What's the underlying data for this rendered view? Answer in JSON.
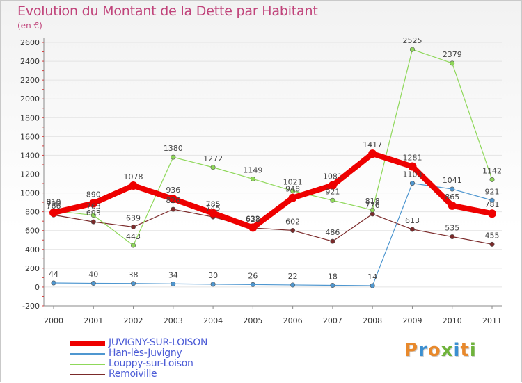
{
  "title": "Evolution du Montant de la Dette par Habitant",
  "unit": "(en €)",
  "logo": {
    "text": "Proxiti",
    "letter_colors": [
      "#e8892c",
      "#3a8fd1",
      "#e8892c",
      "#6fb33b",
      "#3a8fd1",
      "#e8892c",
      "#6fb33b"
    ]
  },
  "colors": {
    "text": "#4b5bd6",
    "axis": "#8a8a8a",
    "grid": "#e4e4e4",
    "title": "#c0437a"
  },
  "chart_data": {
    "type": "line",
    "title": "Evolution du Montant de la Dette par Habitant",
    "ylabel": "(en €)",
    "xlabel": "",
    "x": [
      "2000",
      "2001",
      "2002",
      "2003",
      "2004",
      "2005",
      "2006",
      "2007",
      "2008",
      "2009",
      "2010",
      "2011"
    ],
    "ylim": [
      -200,
      2600
    ],
    "yticks": [
      -200,
      0,
      200,
      400,
      600,
      800,
      1000,
      1200,
      1400,
      1600,
      1800,
      2000,
      2200,
      2400,
      2600
    ],
    "grid": true,
    "legend_position": "bottom-left",
    "series": [
      {
        "name": "Remoiville",
        "color": "#7b2a2a",
        "width": 1.2,
        "values": [
          766,
          693,
          639,
          826,
          745,
          628,
          602,
          486,
          776,
          613,
          535,
          455
        ],
        "labels": [
          "766",
          "693",
          "639",
          "826",
          "745",
          "628",
          "602",
          "486",
          "776",
          "613",
          "535",
          "455"
        ]
      },
      {
        "name": "Han-lès-Juvigny",
        "color": "#4f97d0",
        "width": 1.2,
        "values": [
          44,
          40,
          38,
          34,
          30,
          26,
          22,
          18,
          14,
          1103,
          1041,
          921
        ],
        "labels": [
          "44",
          "40",
          "38",
          "34",
          "30",
          "26",
          "22",
          "18",
          "14",
          "1103",
          "1041",
          "921"
        ]
      },
      {
        "name": "Louppy-sur-Loison",
        "color": "#8fd85a",
        "width": 1.2,
        "values": [
          810,
          763,
          443,
          1380,
          1272,
          1149,
          1021,
          921,
          818,
          2525,
          2379,
          1142
        ],
        "labels": [
          "810",
          "763",
          "443",
          "1380",
          "1272",
          "1149",
          "1021",
          "921",
          "818",
          "2525",
          "2379",
          "1142"
        ]
      },
      {
        "name": "JUVIGNY-SUR-LOISON",
        "color": "#ee0000",
        "width": 8,
        "values": [
          790,
          890,
          1078,
          936,
          785,
          632,
          948,
          1081,
          1417,
          1281,
          865,
          781
        ],
        "labels": [
          "790",
          "890",
          "1078",
          "936",
          "785",
          "632",
          "948",
          "1081",
          "1417",
          "1281",
          "865",
          "781"
        ]
      }
    ],
    "legend_order": [
      "JUVIGNY-SUR-LOISON",
      "Han-lès-Juvigny",
      "Louppy-sur-Loison",
      "Remoiville"
    ]
  }
}
